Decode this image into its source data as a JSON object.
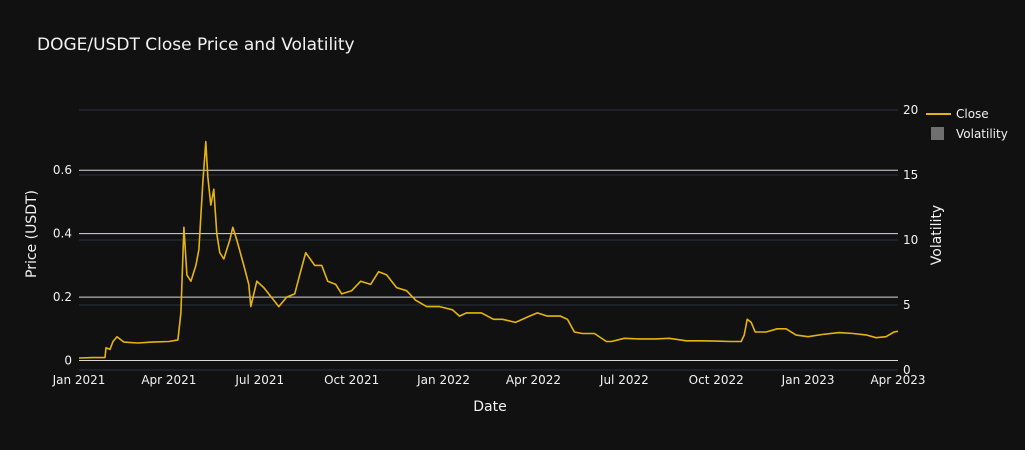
{
  "chart_data": {
    "type": "line",
    "title": "DOGE/USDT Close Price and Volatility",
    "xlabel": "Date",
    "ylabel": "Price (USDT)",
    "y2label": "Volatility",
    "x_ticks": [
      "Jan 2021",
      "Apr 2021",
      "Jul 2021",
      "Oct 2021",
      "Jan 2022",
      "Apr 2022",
      "Jul 2022",
      "Oct 2022",
      "Jan 2023",
      "Apr 2023"
    ],
    "x_range": [
      "2021-01-01",
      "2023-04-01"
    ],
    "y_ticks": [
      0,
      0.2,
      0.4,
      0.6
    ],
    "y_tick_labels": [
      "0",
      "0.2",
      "0.4",
      "0.6"
    ],
    "ylim": [
      -0.03,
      0.79
    ],
    "y2_ticks": [
      0,
      5,
      10,
      15,
      20
    ],
    "y2_tick_labels": [
      "0",
      "5",
      "10",
      "15",
      "20"
    ],
    "y2lim": [
      0,
      20
    ],
    "legend_position": "top-right",
    "colors": {
      "close": "#e5b50f",
      "volatility": "#6f6f6f",
      "background": "#111111",
      "grid_primary": "#d9d9d9",
      "grid_secondary": "#283142"
    },
    "series": [
      {
        "name": "Close",
        "axis": "left",
        "x": [
          "2021-01-01",
          "2021-01-15",
          "2021-01-27",
          "2021-01-28",
          "2021-02-01",
          "2021-02-04",
          "2021-02-08",
          "2021-02-15",
          "2021-03-01",
          "2021-03-15",
          "2021-04-01",
          "2021-04-10",
          "2021-04-13",
          "2021-04-16",
          "2021-04-19",
          "2021-04-23",
          "2021-04-28",
          "2021-05-01",
          "2021-05-05",
          "2021-05-08",
          "2021-05-10",
          "2021-05-13",
          "2021-05-16",
          "2021-05-19",
          "2021-05-22",
          "2021-05-26",
          "2021-06-01",
          "2021-06-04",
          "2021-06-08",
          "2021-06-15",
          "2021-06-20",
          "2021-06-22",
          "2021-06-28",
          "2021-07-05",
          "2021-07-15",
          "2021-07-20",
          "2021-07-28",
          "2021-08-05",
          "2021-08-10",
          "2021-08-16",
          "2021-08-25",
          "2021-09-01",
          "2021-09-07",
          "2021-09-15",
          "2021-09-21",
          "2021-10-01",
          "2021-10-10",
          "2021-10-20",
          "2021-10-28",
          "2021-11-05",
          "2021-11-15",
          "2021-11-25",
          "2021-12-04",
          "2021-12-15",
          "2021-12-28",
          "2022-01-10",
          "2022-01-17",
          "2022-01-24",
          "2022-02-08",
          "2022-02-20",
          "2022-03-01",
          "2022-03-14",
          "2022-03-28",
          "2022-04-05",
          "2022-04-15",
          "2022-04-28",
          "2022-05-05",
          "2022-05-12",
          "2022-05-20",
          "2022-06-01",
          "2022-06-13",
          "2022-06-18",
          "2022-07-01",
          "2022-07-15",
          "2022-08-01",
          "2022-08-15",
          "2022-09-01",
          "2022-09-15",
          "2022-10-01",
          "2022-10-15",
          "2022-10-26",
          "2022-10-29",
          "2022-11-01",
          "2022-11-05",
          "2022-11-09",
          "2022-11-20",
          "2022-12-01",
          "2022-12-10",
          "2022-12-20",
          "2023-01-01",
          "2023-01-15",
          "2023-02-01",
          "2023-02-15",
          "2023-03-01",
          "2023-03-10",
          "2023-03-20",
          "2023-03-28",
          "2023-04-01"
        ],
        "values": [
          0.008,
          0.009,
          0.009,
          0.04,
          0.035,
          0.06,
          0.075,
          0.058,
          0.055,
          0.058,
          0.06,
          0.065,
          0.15,
          0.42,
          0.27,
          0.25,
          0.3,
          0.35,
          0.56,
          0.69,
          0.58,
          0.49,
          0.54,
          0.4,
          0.34,
          0.32,
          0.38,
          0.42,
          0.38,
          0.3,
          0.24,
          0.17,
          0.25,
          0.23,
          0.19,
          0.17,
          0.2,
          0.21,
          0.27,
          0.34,
          0.3,
          0.3,
          0.25,
          0.24,
          0.21,
          0.22,
          0.25,
          0.24,
          0.28,
          0.27,
          0.23,
          0.22,
          0.19,
          0.17,
          0.17,
          0.16,
          0.14,
          0.15,
          0.15,
          0.13,
          0.13,
          0.12,
          0.14,
          0.15,
          0.14,
          0.14,
          0.13,
          0.09,
          0.085,
          0.085,
          0.06,
          0.06,
          0.07,
          0.068,
          0.068,
          0.07,
          0.062,
          0.062,
          0.061,
          0.06,
          0.06,
          0.08,
          0.13,
          0.12,
          0.09,
          0.09,
          0.1,
          0.1,
          0.08,
          0.075,
          0.082,
          0.088,
          0.085,
          0.08,
          0.072,
          0.075,
          0.09,
          0.092
        ]
      },
      {
        "name": "Volatility",
        "axis": "right",
        "x": [],
        "values": []
      }
    ]
  }
}
